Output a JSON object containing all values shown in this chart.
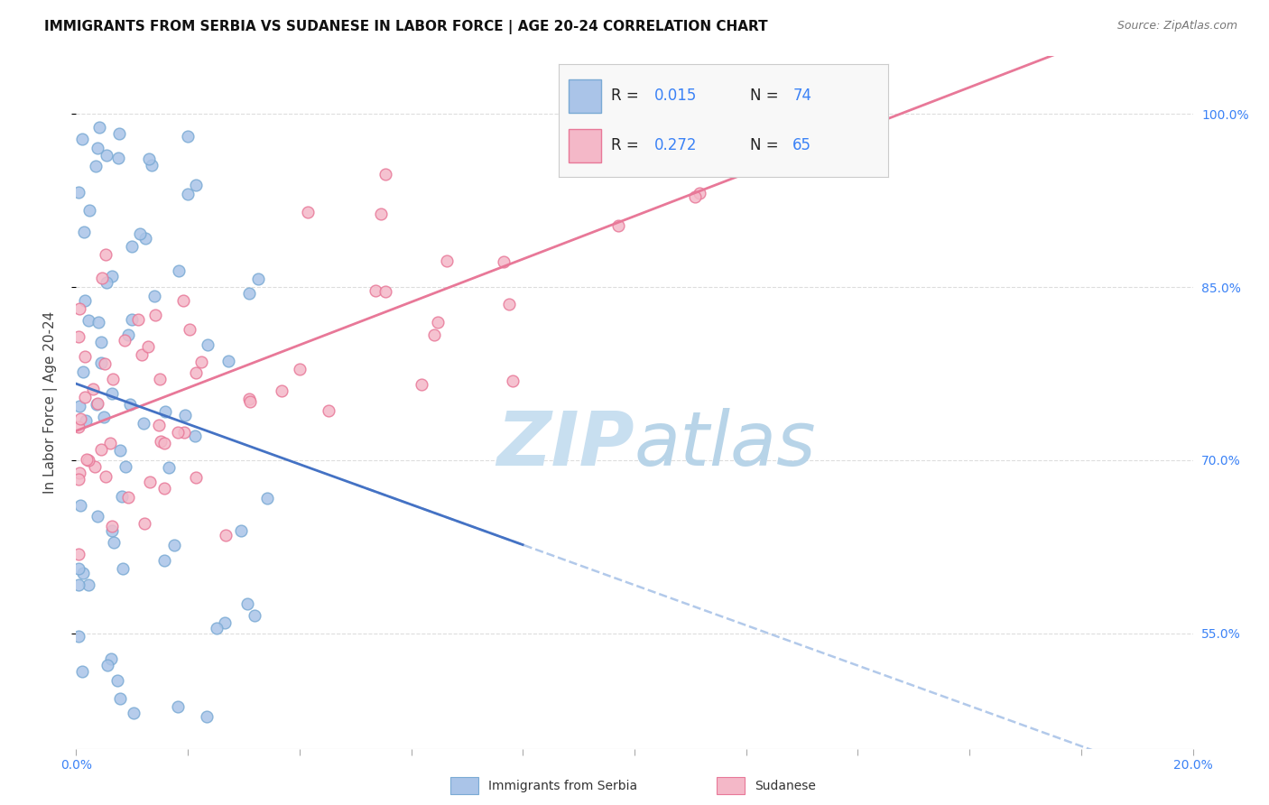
{
  "title": "IMMIGRANTS FROM SERBIA VS SUDANESE IN LABOR FORCE | AGE 20-24 CORRELATION CHART",
  "source": "Source: ZipAtlas.com",
  "ylabel": "In Labor Force | Age 20-24",
  "xlim": [
    0.0,
    0.2
  ],
  "ylim": [
    0.45,
    1.05
  ],
  "ytick_positions": [
    0.55,
    0.7,
    0.85,
    1.0
  ],
  "ytick_labels": [
    "55.0%",
    "70.0%",
    "85.0%",
    "100.0%"
  ],
  "serbia_color": "#aac4e8",
  "serbia_edge": "#7aaad4",
  "sudanese_color": "#f4b8c8",
  "sudanese_edge": "#e87898",
  "serbia_R": 0.015,
  "serbia_N": 74,
  "sudanese_R": 0.272,
  "sudanese_N": 65,
  "serbia_line_color": "#4472c4",
  "serbia_dash_color": "#aac4e8",
  "sudanese_line_color": "#e87898",
  "legend_text_color": "#3b82f6",
  "background_color": "#ffffff",
  "grid_color": "#dddddd",
  "watermark_zip": "ZIP",
  "watermark_atlas": "atlas",
  "watermark_color": "#c8dff0"
}
